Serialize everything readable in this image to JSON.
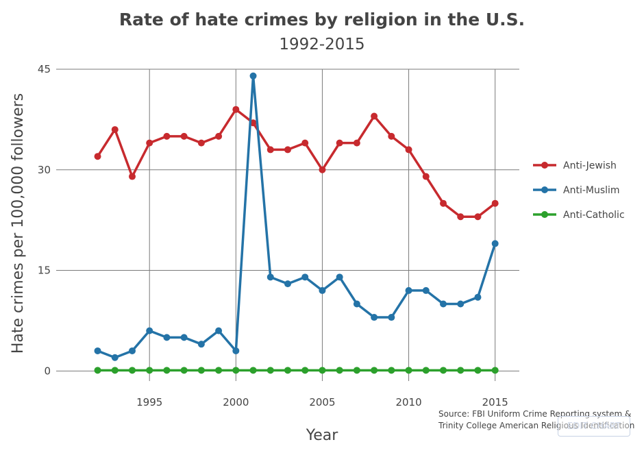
{
  "chart_data": {
    "type": "line",
    "title": "Rate of hate crimes by religion in the U.S.",
    "subtitle": "1992-2015",
    "xlabel": "Year",
    "ylabel": "Hate crimes per 100,000 followers",
    "x": [
      1992,
      1993,
      1994,
      1995,
      1996,
      1997,
      1998,
      1999,
      2000,
      2001,
      2002,
      2003,
      2004,
      2005,
      2006,
      2007,
      2008,
      2009,
      2010,
      2011,
      2012,
      2013,
      2014,
      2015
    ],
    "xlim": [
      1989.6,
      2016.4
    ],
    "ylim": [
      -1.5,
      45
    ],
    "xticks": [
      1995,
      2000,
      2005,
      2010,
      2015
    ],
    "yticks": [
      0,
      15,
      30,
      45
    ],
    "grid": true,
    "legend_position": "right",
    "series": [
      {
        "name": "Anti-Jewish",
        "color": "#c72a2e",
        "values": [
          32,
          36,
          29,
          34,
          35,
          35,
          34,
          35,
          39,
          37,
          33,
          33,
          34,
          30,
          34,
          34,
          38,
          35,
          33,
          29,
          25,
          23,
          23,
          25
        ]
      },
      {
        "name": "Anti-Muslim",
        "color": "#2473a7",
        "values": [
          3,
          2,
          3,
          6,
          5,
          5,
          4,
          6,
          3,
          44,
          14,
          13,
          14,
          12,
          14,
          10,
          8,
          8,
          12,
          12,
          10,
          10,
          11,
          19
        ]
      },
      {
        "name": "Anti-Catholic",
        "color": "#2ca02c",
        "values": [
          0.1,
          0.1,
          0.1,
          0.1,
          0.1,
          0.1,
          0.1,
          0.1,
          0.1,
          0.1,
          0.1,
          0.1,
          0.1,
          0.1,
          0.1,
          0.1,
          0.1,
          0.1,
          0.1,
          0.1,
          0.1,
          0.1,
          0.1,
          0.1
        ]
      }
    ],
    "source_line1": "Source: FBI Uniform Crime Reporting system &",
    "source_line2": "Trinity College American Religious Identification"
  },
  "edit_button": {
    "label": "EDIT CHART"
  }
}
